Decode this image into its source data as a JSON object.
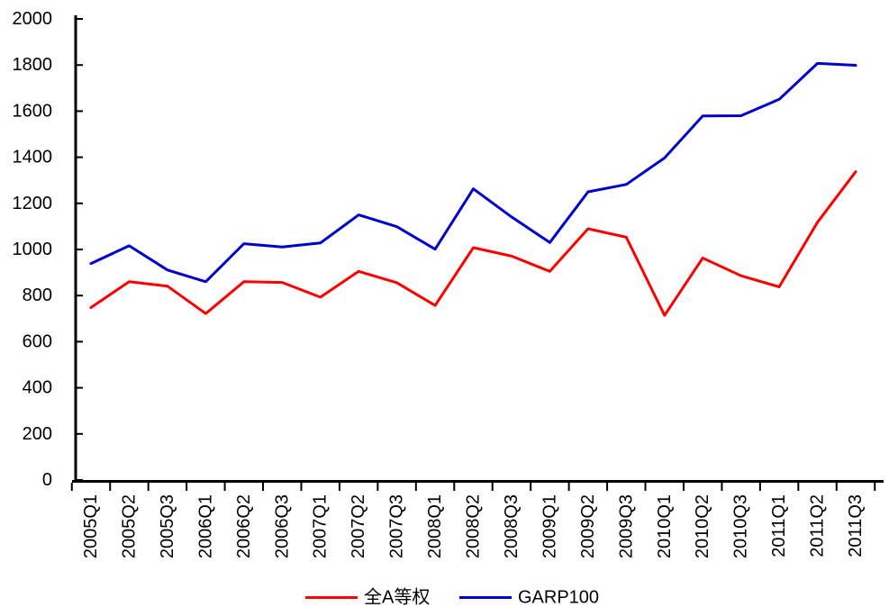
{
  "chart_data": {
    "type": "line",
    "title": "",
    "xlabel": "",
    "ylabel": "",
    "grid": false,
    "legend_position": "bottom-center",
    "x_label_rotation": -90,
    "ylim": [
      0,
      2000
    ],
    "ytick_step": 200,
    "ytick_labels": [
      "0",
      "200",
      "400",
      "600",
      "800",
      "1000",
      "1200",
      "1400",
      "1600",
      "1800",
      "2000"
    ],
    "categories": [
      "2005Q1",
      "2005Q2",
      "2005Q3",
      "2006Q1",
      "2006Q2",
      "2006Q3",
      "2007Q1",
      "2007Q2",
      "2007Q3",
      "2008Q1",
      "2008Q2",
      "2008Q3",
      "2009Q1",
      "2009Q2",
      "2009Q3",
      "2010Q1",
      "2010Q2",
      "2010Q3",
      "2011Q1",
      "2011Q2",
      "2011Q3"
    ],
    "series": [
      {
        "name": "全A等权",
        "color": "#FF0000",
        "values": [
          748,
          860,
          841,
          722,
          860,
          857,
          793,
          905,
          856,
          757,
          1008,
          971,
          905,
          1090,
          1053,
          714,
          963,
          886,
          838,
          1118,
          1337
        ]
      },
      {
        "name": "GARP100",
        "color": "#0000CC",
        "values": [
          939,
          1016,
          911,
          860,
          1025,
          1011,
          1028,
          1150,
          1099,
          1001,
          1263,
          1141,
          1030,
          1250,
          1282,
          1397,
          1579,
          1580,
          1651,
          1807,
          1799
        ]
      }
    ],
    "axis_color": "#000000",
    "text_color": "#000000"
  }
}
